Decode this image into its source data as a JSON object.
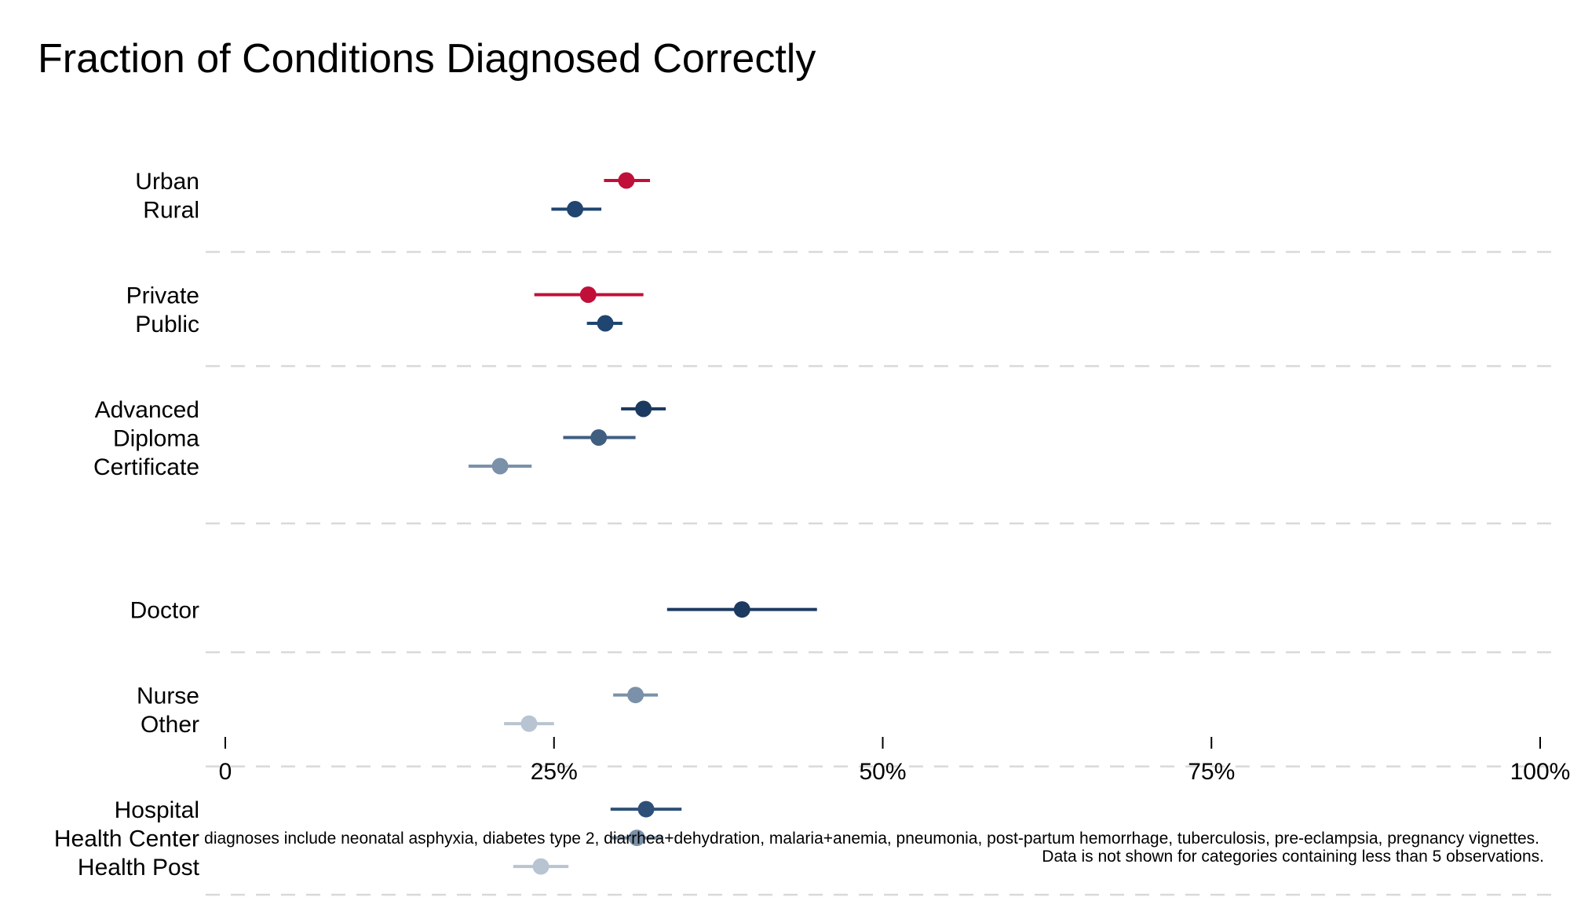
{
  "chart_data": {
    "type": "scatter",
    "subtype": "dot-whisker",
    "title": "Fraction of Conditions Diagnosed Correctly",
    "xlabel": "",
    "ylabel": "",
    "xlim": [
      0,
      100
    ],
    "x_ticks": [
      {
        "value": 0,
        "label": "0"
      },
      {
        "value": 25,
        "label": "25%"
      },
      {
        "value": 50,
        "label": "50%"
      },
      {
        "value": 75,
        "label": "75%"
      },
      {
        "value": 100,
        "label": "100%"
      }
    ],
    "grid": "dashed separators between groups",
    "legend": "none",
    "groups": [
      {
        "items": [
          {
            "label": "Urban",
            "value": 30.5,
            "ci": [
              28.8,
              32.3
            ],
            "color": "#c0103a"
          },
          {
            "label": "Rural",
            "value": 26.6,
            "ci": [
              24.8,
              28.6
            ],
            "color": "#1f4570"
          }
        ]
      },
      {
        "items": [
          {
            "label": "Private",
            "value": 27.6,
            "ci": [
              23.5,
              31.8
            ],
            "color": "#c0103a"
          },
          {
            "label": "Public",
            "value": 28.9,
            "ci": [
              27.5,
              30.2
            ],
            "color": "#1f4570"
          }
        ]
      },
      {
        "items": [
          {
            "label": "Advanced",
            "value": 31.8,
            "ci": [
              30.1,
              33.5
            ],
            "color": "#1c3a60"
          },
          {
            "label": "Diploma",
            "value": 28.4,
            "ci": [
              25.7,
              31.2
            ],
            "color": "#3f5e80"
          },
          {
            "label": "Certificate",
            "value": 20.9,
            "ci": [
              18.5,
              23.3
            ],
            "color": "#7b91a9"
          }
        ]
      },
      {
        "items": [
          {
            "label": "Doctor",
            "value": 39.3,
            "ci": [
              33.6,
              45.0
            ],
            "color": "#1c3a60"
          }
        ]
      },
      {
        "items": [
          {
            "label": "Nurse",
            "value": 31.2,
            "ci": [
              29.5,
              32.9
            ],
            "color": "#7b91a9"
          },
          {
            "label": "Other",
            "value": 23.1,
            "ci": [
              21.2,
              25.0
            ],
            "color": "#b8c4d1"
          }
        ]
      },
      {
        "items": [
          {
            "label": "Hospital",
            "value": 32.0,
            "ci": [
              29.3,
              34.7
            ],
            "color": "#2e5078"
          },
          {
            "label": "Health Center",
            "value": 31.3,
            "ci": [
              29.3,
              33.3
            ],
            "color": "#7b91a9"
          },
          {
            "label": "Health Post",
            "value": 24.0,
            "ci": [
              21.9,
              26.1
            ],
            "color": "#b8c4d1"
          }
        ]
      }
    ],
    "notes": [
      "diagnoses include neonatal asphyxia, diabetes type 2, diarrhea+dehydration, malaria+anemia, pneumonia, post-partum hemorrhage, tuberculosis, pre-eclampsia, pregnancy vignettes.",
      "Data is not shown for categories containing less than 5 observations."
    ]
  }
}
